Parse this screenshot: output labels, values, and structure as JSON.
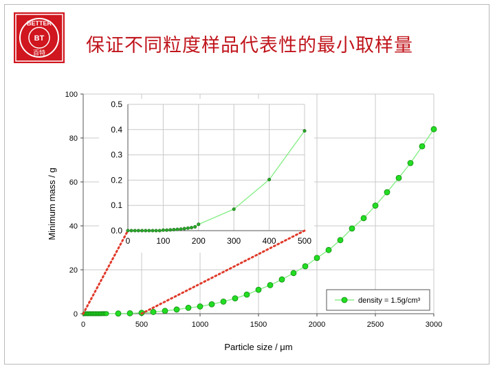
{
  "slide": {
    "title": "保证不同粒度样品代表性的最小取样量"
  },
  "logo": {
    "text_top": "BETTER",
    "text_center": "BT",
    "text_bottom": "百特",
    "color": "#d0161e"
  },
  "colors": {
    "series": "#22b022",
    "series_fill": "#22dd22",
    "line": "#88ee88",
    "connector": "#e03a2a",
    "title": "#c0151c"
  },
  "chart_data": [
    {
      "type": "scatter",
      "xlabel": "Particle size / μm",
      "ylabel": "Minimum mass / g",
      "xlim": [
        0,
        3000
      ],
      "ylim": [
        0,
        100
      ],
      "xticks": [
        "0",
        "500",
        "1000",
        "1500",
        "2000",
        "2500",
        "3000"
      ],
      "yticks": [
        "0",
        "20",
        "40",
        "60",
        "80",
        "100"
      ],
      "grid": true,
      "legend": "bottom-right",
      "series": [
        {
          "name": "density = 1.5g/cm³",
          "x": [
            10,
            20,
            30,
            40,
            50,
            60,
            70,
            80,
            90,
            100,
            110,
            120,
            130,
            140,
            150,
            160,
            170,
            180,
            190,
            200,
            300,
            400,
            500,
            600,
            700,
            800,
            900,
            1000,
            1100,
            1200,
            1300,
            1400,
            1500,
            1600,
            1700,
            1800,
            1900,
            2000,
            2100,
            2200,
            2300,
            2400,
            2500,
            2600,
            2700,
            2800,
            2900,
            3000
          ],
          "y": [
            0,
            0,
            0,
            0,
            0,
            0,
            0,
            0,
            0,
            0.01,
            0.01,
            0.01,
            0.01,
            0.01,
            0.01,
            0.02,
            0.02,
            0.02,
            0.02,
            0.03,
            0.09,
            0.2,
            0.4,
            0.8,
            1.3,
            1.9,
            2.7,
            3.3,
            4.3,
            5.5,
            7,
            8.7,
            10.9,
            13,
            15.6,
            18.5,
            21.6,
            25.4,
            29,
            33.5,
            38.8,
            43.5,
            49.2,
            55.3,
            61.8,
            68.6,
            76.2,
            84
          ]
        }
      ],
      "zoom_region": {
        "x": [
          0,
          500
        ],
        "y": [
          0,
          1
        ]
      }
    },
    {
      "type": "scatter",
      "role": "inset",
      "xlim": [
        0,
        500
      ],
      "ylim": [
        0,
        0.5
      ],
      "xticks": [
        "0",
        "100",
        "200",
        "300",
        "400",
        "500"
      ],
      "yticks": [
        "0.0",
        "0.1",
        "0.2",
        "0.3",
        "0.4",
        "0.5"
      ],
      "grid": true,
      "series": [
        {
          "name": "density = 1.5g/cm³",
          "x": [
            0,
            10,
            20,
            30,
            40,
            50,
            60,
            70,
            80,
            90,
            100,
            110,
            120,
            130,
            140,
            150,
            160,
            170,
            180,
            190,
            200,
            300,
            400,
            500
          ],
          "y": [
            0,
            0,
            0,
            0,
            0,
            0,
            0,
            0,
            0,
            0,
            0.002,
            0.002,
            0.003,
            0.004,
            0.005,
            0.006,
            0.008,
            0.01,
            0.012,
            0.015,
            0.025,
            0.085,
            0.202,
            0.395
          ]
        }
      ]
    }
  ]
}
